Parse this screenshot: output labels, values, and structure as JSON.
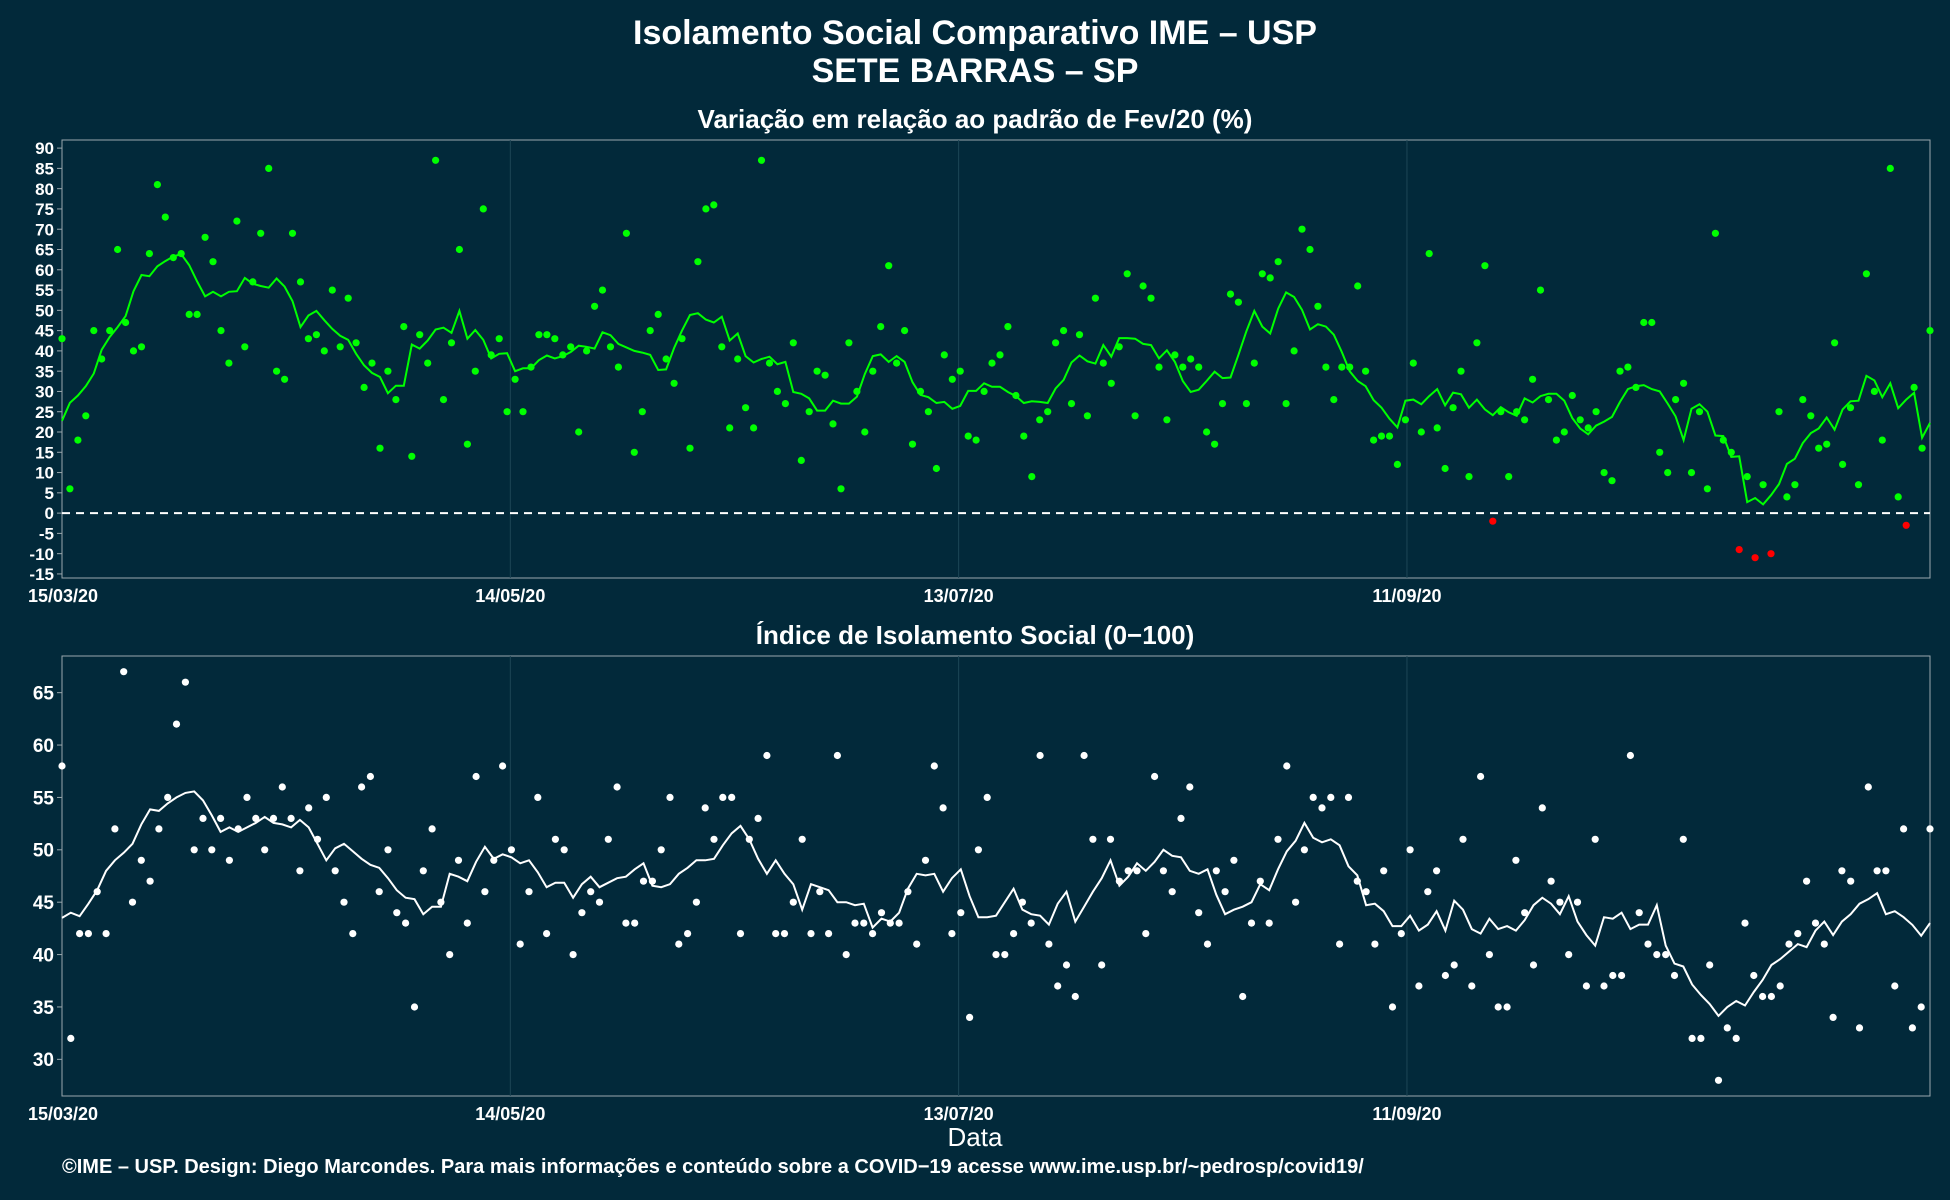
{
  "title_line1": "Isolamento Social Comparativo IME – USP",
  "title_line2": "SETE BARRAS – SP",
  "x_axis_title": "Data",
  "caption": "©IME – USP. Design: Diego Marcondes. Para mais informações e conteúdo sobre a COVID−19 acesse www.ime.usp.br/~pedrosp/covid19/",
  "colors": {
    "background": "#02293a",
    "panel_border": "#9aa7ad",
    "grid": "#1d4656",
    "green": "#00ff00",
    "red": "#ff0000",
    "white": "#ffffff"
  },
  "chart_data": [
    {
      "type": "scatter",
      "title": "Variação em relação ao padrão de Fev/20 (%)",
      "x_start": "15/03/20",
      "x_end": "20/11/20",
      "xticks": [
        "15/03/20",
        "14/05/20",
        "13/07/20",
        "11/09/20"
      ],
      "ylim": [
        -16,
        92
      ],
      "yticks": [
        -15,
        -10,
        -5,
        0,
        5,
        10,
        15,
        20,
        25,
        30,
        35,
        40,
        45,
        50,
        55,
        60,
        65,
        70,
        75,
        80,
        85,
        90
      ],
      "reference_line": 0,
      "grid": true,
      "moving_average_color_rule": "green when ≥ 0 trend, red segments where points fall below 0",
      "values": [
        43,
        6,
        18,
        24,
        45,
        38,
        45,
        65,
        47,
        40,
        41,
        64,
        81,
        73,
        63,
        64,
        49,
        49,
        68,
        62,
        45,
        37,
        72,
        41,
        57,
        69,
        85,
        35,
        33,
        69,
        57,
        43,
        44,
        40,
        55,
        41,
        53,
        42,
        31,
        37,
        16,
        35,
        28,
        46,
        14,
        44,
        37,
        87,
        28,
        42,
        65,
        17,
        35,
        75,
        39,
        43,
        25,
        33,
        25,
        36,
        44,
        44,
        43,
        39,
        41,
        20,
        40,
        51,
        55,
        41,
        36,
        69,
        15,
        25,
        45,
        49,
        38,
        32,
        43,
        16,
        62,
        75,
        76,
        41,
        21,
        38,
        26,
        21,
        87,
        37,
        30,
        27,
        42,
        13,
        25,
        35,
        34,
        22,
        6,
        42,
        30,
        20,
        35,
        46,
        61,
        37,
        45,
        17,
        30,
        25,
        11,
        39,
        33,
        35,
        19,
        18,
        30,
        37,
        39,
        46,
        29,
        19,
        9,
        23,
        25,
        42,
        45,
        27,
        44,
        24,
        53,
        37,
        32,
        41,
        59,
        24,
        56,
        53,
        36,
        23,
        39,
        36,
        38,
        36,
        20,
        17,
        27,
        54,
        52,
        27,
        37,
        59,
        58,
        62,
        27,
        40,
        70,
        65,
        51,
        36,
        28,
        36,
        36,
        56,
        35,
        18,
        19,
        19,
        12,
        23,
        37,
        20,
        64,
        21,
        11,
        26,
        35,
        9,
        42,
        61,
        -2,
        25,
        9,
        25,
        23,
        33,
        55,
        28,
        18,
        20,
        29,
        23,
        21,
        25,
        10,
        8,
        35,
        36,
        31,
        47,
        47,
        15,
        10,
        28,
        32,
        10,
        25,
        6,
        69,
        18,
        15,
        -9,
        9,
        -11,
        7,
        -10,
        25,
        4,
        7,
        28,
        24,
        16,
        17,
        42,
        12,
        26,
        7,
        59,
        30,
        18,
        85,
        4,
        -3,
        31,
        16,
        45
      ]
    },
    {
      "type": "scatter",
      "title": "Índice de Isolamento Social (0−100)",
      "x_start": "15/03/20",
      "x_end": "20/11/20",
      "xticks": [
        "15/03/20",
        "14/05/20",
        "13/07/20",
        "11/09/20"
      ],
      "ylim": [
        26.5,
        68.5
      ],
      "yticks": [
        30,
        35,
        40,
        45,
        50,
        55,
        60,
        65
      ],
      "grid": true,
      "values": [
        58,
        32,
        42,
        42,
        46,
        42,
        52,
        67,
        45,
        49,
        47,
        52,
        55,
        62,
        66,
        50,
        53,
        50,
        53,
        49,
        52,
        55,
        53,
        50,
        53,
        56,
        53,
        48,
        54,
        51,
        55,
        48,
        45,
        42,
        56,
        57,
        46,
        50,
        44,
        43,
        35,
        48,
        52,
        45,
        40,
        49,
        43,
        57,
        46,
        49,
        58,
        50,
        41,
        46,
        55,
        42,
        51,
        50,
        40,
        44,
        46,
        45,
        51,
        56,
        43,
        43,
        47,
        47,
        50,
        55,
        41,
        42,
        45,
        54,
        51,
        55,
        55,
        42,
        51,
        53,
        59,
        42,
        42,
        45,
        51,
        42,
        46,
        42,
        59,
        40,
        43,
        43,
        42,
        44,
        43,
        43,
        46,
        41,
        49,
        58,
        54,
        42,
        44,
        34,
        50,
        55,
        40,
        40,
        42,
        45,
        43,
        59,
        41,
        37,
        39,
        36,
        59,
        51,
        39,
        51,
        47,
        48,
        48,
        42,
        57,
        48,
        46,
        53,
        56,
        44,
        41,
        48,
        46,
        49,
        36,
        43,
        47,
        43,
        51,
        58,
        45,
        50,
        55,
        54,
        55,
        41,
        55,
        47,
        46,
        41,
        48,
        35,
        42,
        50,
        37,
        46,
        48,
        38,
        39,
        51,
        37,
        57,
        40,
        35,
        35,
        49,
        44,
        39,
        54,
        47,
        45,
        40,
        45,
        37,
        51,
        37,
        38,
        38,
        59,
        44,
        41,
        40,
        40,
        38,
        51,
        32,
        32,
        39,
        28,
        33,
        32,
        43,
        38,
        36,
        36,
        37,
        41,
        42,
        47,
        43,
        41,
        34,
        48,
        47,
        33,
        56,
        48,
        48,
        37,
        52,
        33,
        35,
        52
      ]
    }
  ]
}
